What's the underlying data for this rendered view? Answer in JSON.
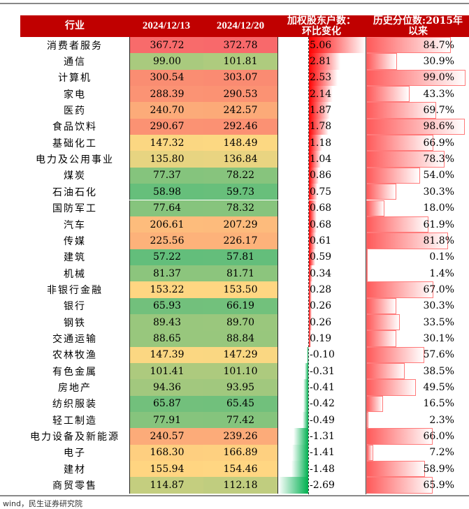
{
  "chart_data": {
    "type": "table",
    "columns": [
      "行业",
      "2024/12/13",
      "2024/12/20",
      "加权股东户数：环比变化",
      "历史分位数:2015年以来"
    ],
    "rows": [
      [
        "消费者服务",
        367.72,
        372.78,
        5.06,
        "84.7%"
      ],
      [
        "通信",
        99.0,
        101.81,
        2.81,
        "30.9%"
      ],
      [
        "计算机",
        300.54,
        303.07,
        2.53,
        "99.0%"
      ],
      [
        "家电",
        288.39,
        290.53,
        2.14,
        "43.3%"
      ],
      [
        "医药",
        240.7,
        242.57,
        1.87,
        "69.7%"
      ],
      [
        "食品饮料",
        290.67,
        292.46,
        1.78,
        "98.6%"
      ],
      [
        "基础化工",
        147.32,
        148.49,
        1.18,
        "66.9%"
      ],
      [
        "电力及公用事业",
        135.8,
        136.84,
        1.04,
        "78.3%"
      ],
      [
        "煤炭",
        77.37,
        78.22,
        0.86,
        "54.0%"
      ],
      [
        "石油石化",
        58.98,
        59.73,
        0.75,
        "30.3%"
      ],
      [
        "国防军工",
        77.64,
        78.32,
        0.68,
        "18.0%"
      ],
      [
        "汽车",
        206.61,
        207.29,
        0.68,
        "61.9%"
      ],
      [
        "传媒",
        225.56,
        226.17,
        0.61,
        "81.8%"
      ],
      [
        "建筑",
        57.22,
        57.81,
        0.59,
        "0.1%"
      ],
      [
        "机械",
        81.37,
        81.71,
        0.34,
        "1.4%"
      ],
      [
        "非银行金融",
        153.22,
        153.5,
        0.28,
        "67.0%"
      ],
      [
        "银行",
        65.93,
        66.19,
        0.26,
        "30.3%"
      ],
      [
        "钢铁",
        89.43,
        89.7,
        0.26,
        "33.5%"
      ],
      [
        "交通运输",
        88.65,
        88.84,
        0.19,
        "30.1%"
      ],
      [
        "农林牧渔",
        147.39,
        147.29,
        -0.1,
        "57.6%"
      ],
      [
        "有色金属",
        101.41,
        101.1,
        -0.31,
        "38.5%"
      ],
      [
        "房地产",
        94.36,
        93.95,
        -0.41,
        "49.5%"
      ],
      [
        "纺织服装",
        65.87,
        65.45,
        -0.42,
        "16.5%"
      ],
      [
        "轻工制造",
        77.91,
        77.42,
        -0.49,
        "2.3%"
      ],
      [
        "电力设备及新能源",
        240.57,
        239.26,
        -1.31,
        "66.0%"
      ],
      [
        "电子",
        168.3,
        166.89,
        -1.41,
        "7.2%"
      ],
      [
        "建材",
        155.94,
        154.46,
        -1.48,
        "58.9%"
      ],
      [
        "商贸零售",
        114.87,
        112.18,
        -2.69,
        "65.9%"
      ]
    ]
  },
  "header": {
    "c0": "行业",
    "c1": "2024/12/13",
    "c2": "2024/12/20",
    "c3a": "加权股东户数：",
    "c3b": "环比变化",
    "c4a": "历史分位数:2015年",
    "c4b": "以来"
  },
  "source": "wind，民生证券研究院",
  "colors": {
    "header": "#c00000",
    "pos_bar": "#ff0000",
    "neg_bar": "#00b050",
    "pct_bar": "#ff5a5a"
  }
}
